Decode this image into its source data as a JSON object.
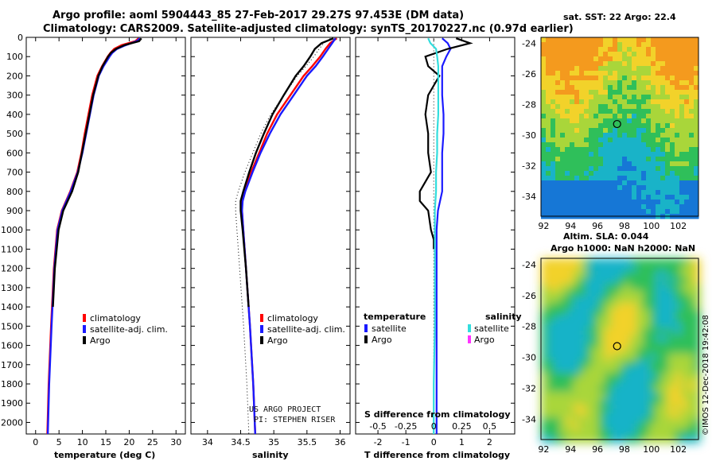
{
  "header": {
    "title_line1": "Argo profile: aoml 5904443_85 27-Feb-2017 29.27S 97.453E (DM data)",
    "title_line2": "Climatology: CARS2009. Satellite-adjusted climatology: synTS_20170227.nc (0.97d earlier)"
  },
  "colors": {
    "climatology": "#ff0000",
    "satellite": "#1a1aff",
    "argo": "#000000",
    "sat_salinity": "#33dddd",
    "argo_salinity": "#ff33ff"
  },
  "depth_axis": {
    "ticks": [
      0,
      100,
      200,
      300,
      400,
      500,
      600,
      700,
      800,
      900,
      1000,
      1100,
      1200,
      1300,
      1400,
      1500,
      1600,
      1700,
      1800,
      1900,
      2000
    ]
  },
  "chart_data": [
    {
      "type": "line",
      "name": "temperature",
      "xlabel": "temperature (deg C)",
      "xlim": [
        -2,
        32
      ],
      "ylim": [
        2060,
        0
      ],
      "xticks": [
        "0",
        "5",
        "10",
        "15",
        "20",
        "25",
        "30"
      ],
      "xtick_values": [
        0,
        5,
        10,
        15,
        20,
        25,
        30
      ],
      "legend": [
        "climatology",
        "satellite-adj. clim.",
        "Argo"
      ],
      "series": [
        {
          "name": "climatology",
          "color": "#ff0000",
          "depth": [
            5,
            20,
            40,
            60,
            80,
            100,
            150,
            200,
            300,
            400,
            500,
            600,
            700,
            800,
            900,
            1000,
            1200,
            1500,
            1800,
            2060
          ],
          "values": [
            22.0,
            21.3,
            18.4,
            16.8,
            16.0,
            15.4,
            14.2,
            13.2,
            12.1,
            11.3,
            10.5,
            9.8,
            8.9,
            7.4,
            5.6,
            4.6,
            3.9,
            3.3,
            2.8,
            2.5
          ]
        },
        {
          "name": "satellite-adj. clim.",
          "color": "#1a1aff",
          "depth": [
            5,
            20,
            40,
            60,
            80,
            100,
            150,
            200,
            300,
            400,
            500,
            600,
            700,
            800,
            900,
            1000,
            1200,
            1500,
            1800,
            2060
          ],
          "values": [
            22.3,
            21.6,
            19.3,
            17.4,
            16.4,
            15.8,
            14.5,
            13.5,
            12.4,
            11.6,
            10.8,
            10.0,
            9.0,
            7.5,
            5.7,
            4.7,
            4.0,
            3.4,
            2.9,
            2.6
          ]
        },
        {
          "name": "Argo",
          "color": "#000000",
          "depth": [
            5,
            20,
            40,
            60,
            80,
            100,
            150,
            200,
            300,
            400,
            500,
            600,
            700,
            800,
            900,
            1000,
            1200,
            1400
          ],
          "values": [
            22.6,
            22.1,
            19.0,
            17.2,
            16.1,
            15.5,
            14.3,
            13.4,
            12.3,
            11.5,
            10.7,
            9.9,
            9.1,
            7.8,
            5.9,
            4.9,
            4.1,
            3.7
          ]
        }
      ]
    },
    {
      "type": "line",
      "name": "salinity",
      "xlabel": "salinity",
      "xlim": [
        33.75,
        36.15
      ],
      "ylim": [
        2060,
        0
      ],
      "xticks": [
        "34",
        "34.5",
        "35",
        "35.5",
        "36"
      ],
      "xtick_values": [
        34,
        34.5,
        35,
        35.5,
        36
      ],
      "legend": [
        "climatology",
        "satellite-adj. clim.",
        "Argo"
      ],
      "credit": [
        "US ARGO PROJECT",
        "PI: STEPHEN RISER"
      ],
      "series": [
        {
          "name": "climatology",
          "color": "#ff0000",
          "depth": [
            5,
            30,
            60,
            100,
            150,
            200,
            300,
            400,
            500,
            600,
            700,
            800,
            850,
            900,
            1000,
            1200,
            1500,
            1800,
            2060
          ],
          "values": [
            35.95,
            35.85,
            35.78,
            35.7,
            35.58,
            35.45,
            35.25,
            35.05,
            34.9,
            34.78,
            34.66,
            34.56,
            34.52,
            34.52,
            34.54,
            34.58,
            34.64,
            34.69,
            34.72
          ]
        },
        {
          "name": "satellite-adj. clim.",
          "color": "#1a1aff",
          "depth": [
            5,
            30,
            60,
            100,
            150,
            200,
            300,
            400,
            500,
            600,
            700,
            800,
            850,
            900,
            1000,
            1200,
            1500,
            1800,
            2060
          ],
          "values": [
            35.93,
            35.88,
            35.82,
            35.74,
            35.63,
            35.5,
            35.3,
            35.1,
            34.94,
            34.8,
            34.68,
            34.57,
            34.53,
            34.52,
            34.54,
            34.58,
            34.64,
            34.69,
            34.72
          ]
        },
        {
          "name": "Argo",
          "color": "#000000",
          "depth": [
            5,
            30,
            60,
            100,
            150,
            200,
            300,
            400,
            500,
            600,
            700,
            800,
            850,
            900,
            1000,
            1200,
            1400
          ],
          "values": [
            35.9,
            35.72,
            35.62,
            35.55,
            35.45,
            35.33,
            35.15,
            34.98,
            34.85,
            34.73,
            34.63,
            34.54,
            34.5,
            34.5,
            34.53,
            34.58,
            34.62
          ]
        }
      ]
    },
    {
      "type": "line",
      "name": "difference",
      "xlabel": "T difference from climatology",
      "xlim": [
        -2.8,
        2.9
      ],
      "ylim": [
        2060,
        0
      ],
      "xticks": [
        "-2",
        "-1",
        "0",
        "1",
        "2"
      ],
      "xtick_values": [
        -2,
        -1,
        0,
        1,
        2
      ],
      "s_axis_label": "S difference from climatology",
      "s_ticks": [
        "-0.5",
        "-0.25",
        "0",
        "0.25",
        "0.5"
      ],
      "s_tick_values": [
        -0.5,
        -0.25,
        0,
        0.25,
        0.5
      ],
      "s_xlim": [
        -0.7,
        0.725
      ],
      "legend_temperature_title": "temperature",
      "legend_salinity_title": "salinity",
      "legend_temperature": [
        "satellite",
        "Argo"
      ],
      "legend_salinity": [
        "satellite",
        "Argo"
      ],
      "series": [
        {
          "name": "T satellite",
          "color": "#1a1aff",
          "units": "degC",
          "depth": [
            5,
            30,
            60,
            100,
            150,
            200,
            300,
            400,
            500,
            600,
            700,
            800,
            900,
            1000,
            1200,
            1500,
            1800,
            2060
          ],
          "values": [
            0.3,
            0.5,
            0.6,
            0.45,
            0.3,
            0.3,
            0.3,
            0.35,
            0.35,
            0.3,
            0.3,
            0.3,
            0.15,
            0.1,
            0.1,
            0.1,
            0.1,
            0.1
          ]
        },
        {
          "name": "T Argo",
          "color": "#000000",
          "units": "degC",
          "depth": [
            5,
            30,
            60,
            100,
            150,
            200,
            300,
            400,
            500,
            600,
            700,
            800,
            850,
            900,
            1000,
            1050,
            1100
          ],
          "values": [
            0.8,
            1.3,
            0.5,
            -0.3,
            -0.2,
            0.2,
            -0.2,
            -0.3,
            -0.2,
            -0.2,
            -0.1,
            -0.5,
            -0.5,
            -0.2,
            -0.1,
            0.0,
            0.0
          ]
        },
        {
          "name": "S satellite",
          "color": "#33dddd",
          "units": "psu",
          "depth": [
            5,
            30,
            60,
            100,
            150,
            200,
            300,
            400,
            500,
            600,
            700,
            800,
            900,
            1000,
            1100,
            1200,
            1500,
            1800,
            2060
          ],
          "values": [
            -0.05,
            -0.03,
            0.02,
            0.03,
            0.04,
            0.04,
            0.04,
            0.04,
            0.03,
            0.03,
            0.02,
            0.02,
            0.01,
            0.01,
            0.01,
            0.01,
            0.01,
            0.0,
            0.0
          ]
        }
      ]
    }
  ],
  "maps": [
    {
      "name": "sst_map",
      "title": "sat. SST: 22 Argo: 22.4",
      "lon_ticks": [
        "92",
        "94",
        "96",
        "98",
        "100",
        "102"
      ],
      "lon_values": [
        92,
        94,
        96,
        98,
        100,
        102
      ],
      "lat_ticks": [
        "-24",
        "-26",
        "-28",
        "-30",
        "-32",
        "-34"
      ],
      "lat_values": [
        -24,
        -26,
        -28,
        -30,
        -32,
        -34
      ],
      "lon_range": [
        91.8,
        103.5
      ],
      "lat_range": [
        -23.6,
        -35.3
      ],
      "float_lon": 97.453,
      "float_lat": -29.27
    },
    {
      "name": "sla_map",
      "title_line1": "Altim. SLA: 0.044",
      "title_line2": "Argo h1000: NaN h2000: NaN",
      "lon_ticks": [
        "92",
        "94",
        "96",
        "98",
        "100",
        "102"
      ],
      "lon_values": [
        92,
        94,
        96,
        98,
        100,
        102
      ],
      "lat_ticks": [
        "-24",
        "-26",
        "-28",
        "-30",
        "-32",
        "-34"
      ],
      "lat_values": [
        -24,
        -26,
        -28,
        -30,
        -32,
        -34
      ],
      "lon_range": [
        91.8,
        103.5
      ],
      "lat_range": [
        -23.6,
        -35.3
      ],
      "float_lon": 97.453,
      "float_lat": -29.27
    }
  ],
  "footer": {
    "stamp": "©IMOS 12-Dec-2018 19:42:08"
  }
}
